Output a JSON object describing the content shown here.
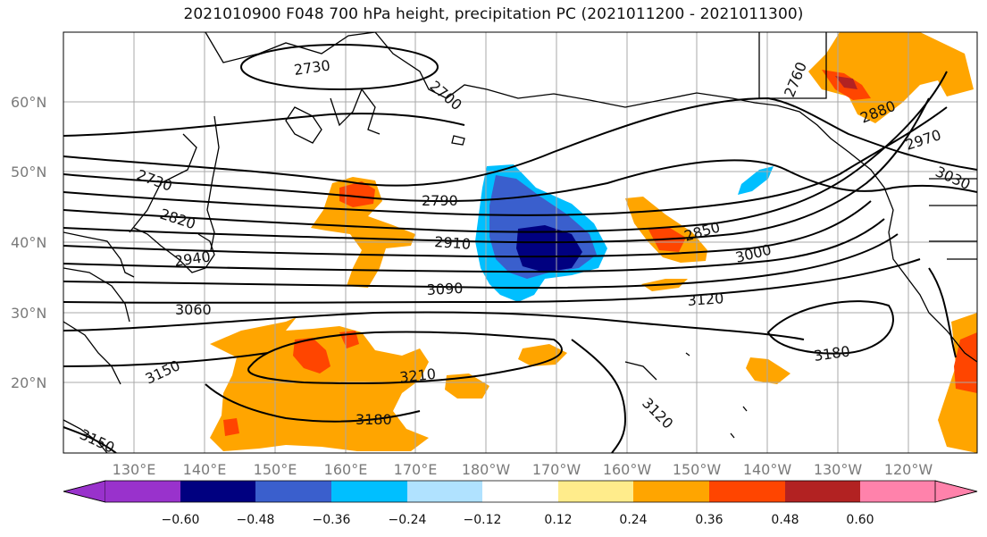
{
  "title": "2021010900 F048 700 hPa height, precipitation PC (2021011200 - 2021011300)",
  "map": {
    "lat_labels": [
      "60°N",
      "50°N",
      "40°N",
      "30°N",
      "20°N"
    ],
    "lon_labels": [
      "130°E",
      "140°E",
      "150°E",
      "160°E",
      "170°E",
      "180°W",
      "170°W",
      "160°W",
      "150°W",
      "140°W",
      "130°W",
      "120°W"
    ],
    "contour_labels": [
      "2730",
      "2700",
      "2730",
      "2820",
      "2940",
      "3060",
      "3150",
      "3150",
      "3180",
      "3210",
      "2790",
      "2910",
      "3090",
      "3120",
      "3000",
      "2850",
      "3180",
      "3120",
      "2760",
      "2880",
      "2970",
      "3030"
    ],
    "shading_colors": {
      "neg_strong": "#000080",
      "neg_med": "#3a5fcd",
      "neg_light": "#00bfff",
      "pos_light": "#ffa500",
      "pos_med": "#ff4500",
      "pos_strong": "#b22222"
    }
  },
  "colorbar": {
    "colors": [
      "#9932cc",
      "#000080",
      "#3a5fcd",
      "#00bfff",
      "#b0e2ff",
      "#ffffff",
      "#ffec8b",
      "#ffa500",
      "#ff4500",
      "#b22222",
      "#ff82ab"
    ],
    "tick_labels": [
      "−0.60",
      "−0.48",
      "−0.36",
      "−0.24",
      "−0.12",
      "0.12",
      "0.24",
      "0.36",
      "0.48",
      "0.60"
    ]
  }
}
